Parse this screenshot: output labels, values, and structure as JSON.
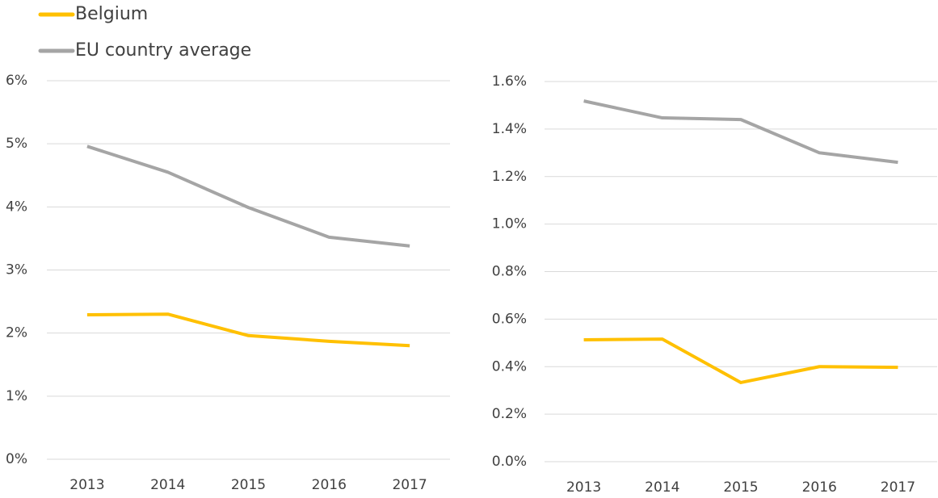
{
  "chart_data": [
    {
      "type": "line",
      "categories": [
        "2013",
        "2014",
        "2015",
        "2016",
        "2017"
      ],
      "series": [
        {
          "name": "Belgium",
          "color": "#ffc000",
          "values": [
            2.29,
            2.3,
            1.96,
            1.87,
            1.8
          ]
        },
        {
          "name": "EU country average",
          "color": "#a5a5a5",
          "values": [
            4.96,
            4.55,
            3.99,
            3.52,
            3.38
          ]
        }
      ],
      "ylim": [
        0,
        6
      ],
      "yticks": [
        {
          "value": 0,
          "label": "0%"
        },
        {
          "value": 1,
          "label": "1%"
        },
        {
          "value": 2,
          "label": "2%"
        },
        {
          "value": 3,
          "label": "3%"
        },
        {
          "value": 4,
          "label": "4%"
        },
        {
          "value": 5,
          "label": "5%"
        },
        {
          "value": 6,
          "label": "6%"
        }
      ],
      "grid": true
    },
    {
      "type": "line",
      "categories": [
        "2013",
        "2014",
        "2015",
        "2016",
        "2017"
      ],
      "series": [
        {
          "color": "#ffc000",
          "values": [
            0.513,
            0.516,
            0.333,
            0.4,
            0.397
          ]
        },
        {
          "color": "#a5a5a5",
          "values": [
            1.518,
            1.447,
            1.44,
            1.3,
            1.26
          ]
        }
      ],
      "ylim": [
        0,
        1.6
      ],
      "yticks": [
        {
          "value": 0,
          "label": "0.0%"
        },
        {
          "value": 0.2,
          "label": "0.2%"
        },
        {
          "value": 0.4,
          "label": "0.4%"
        },
        {
          "value": 0.6,
          "label": "0.6%"
        },
        {
          "value": 0.8,
          "label": "0.8%"
        },
        {
          "value": 1.0,
          "label": "1.0%"
        },
        {
          "value": 1.2,
          "label": "1.2%"
        },
        {
          "value": 1.4,
          "label": "1.4%"
        },
        {
          "value": 1.6,
          "label": "1.6%"
        }
      ],
      "grid": true
    }
  ]
}
